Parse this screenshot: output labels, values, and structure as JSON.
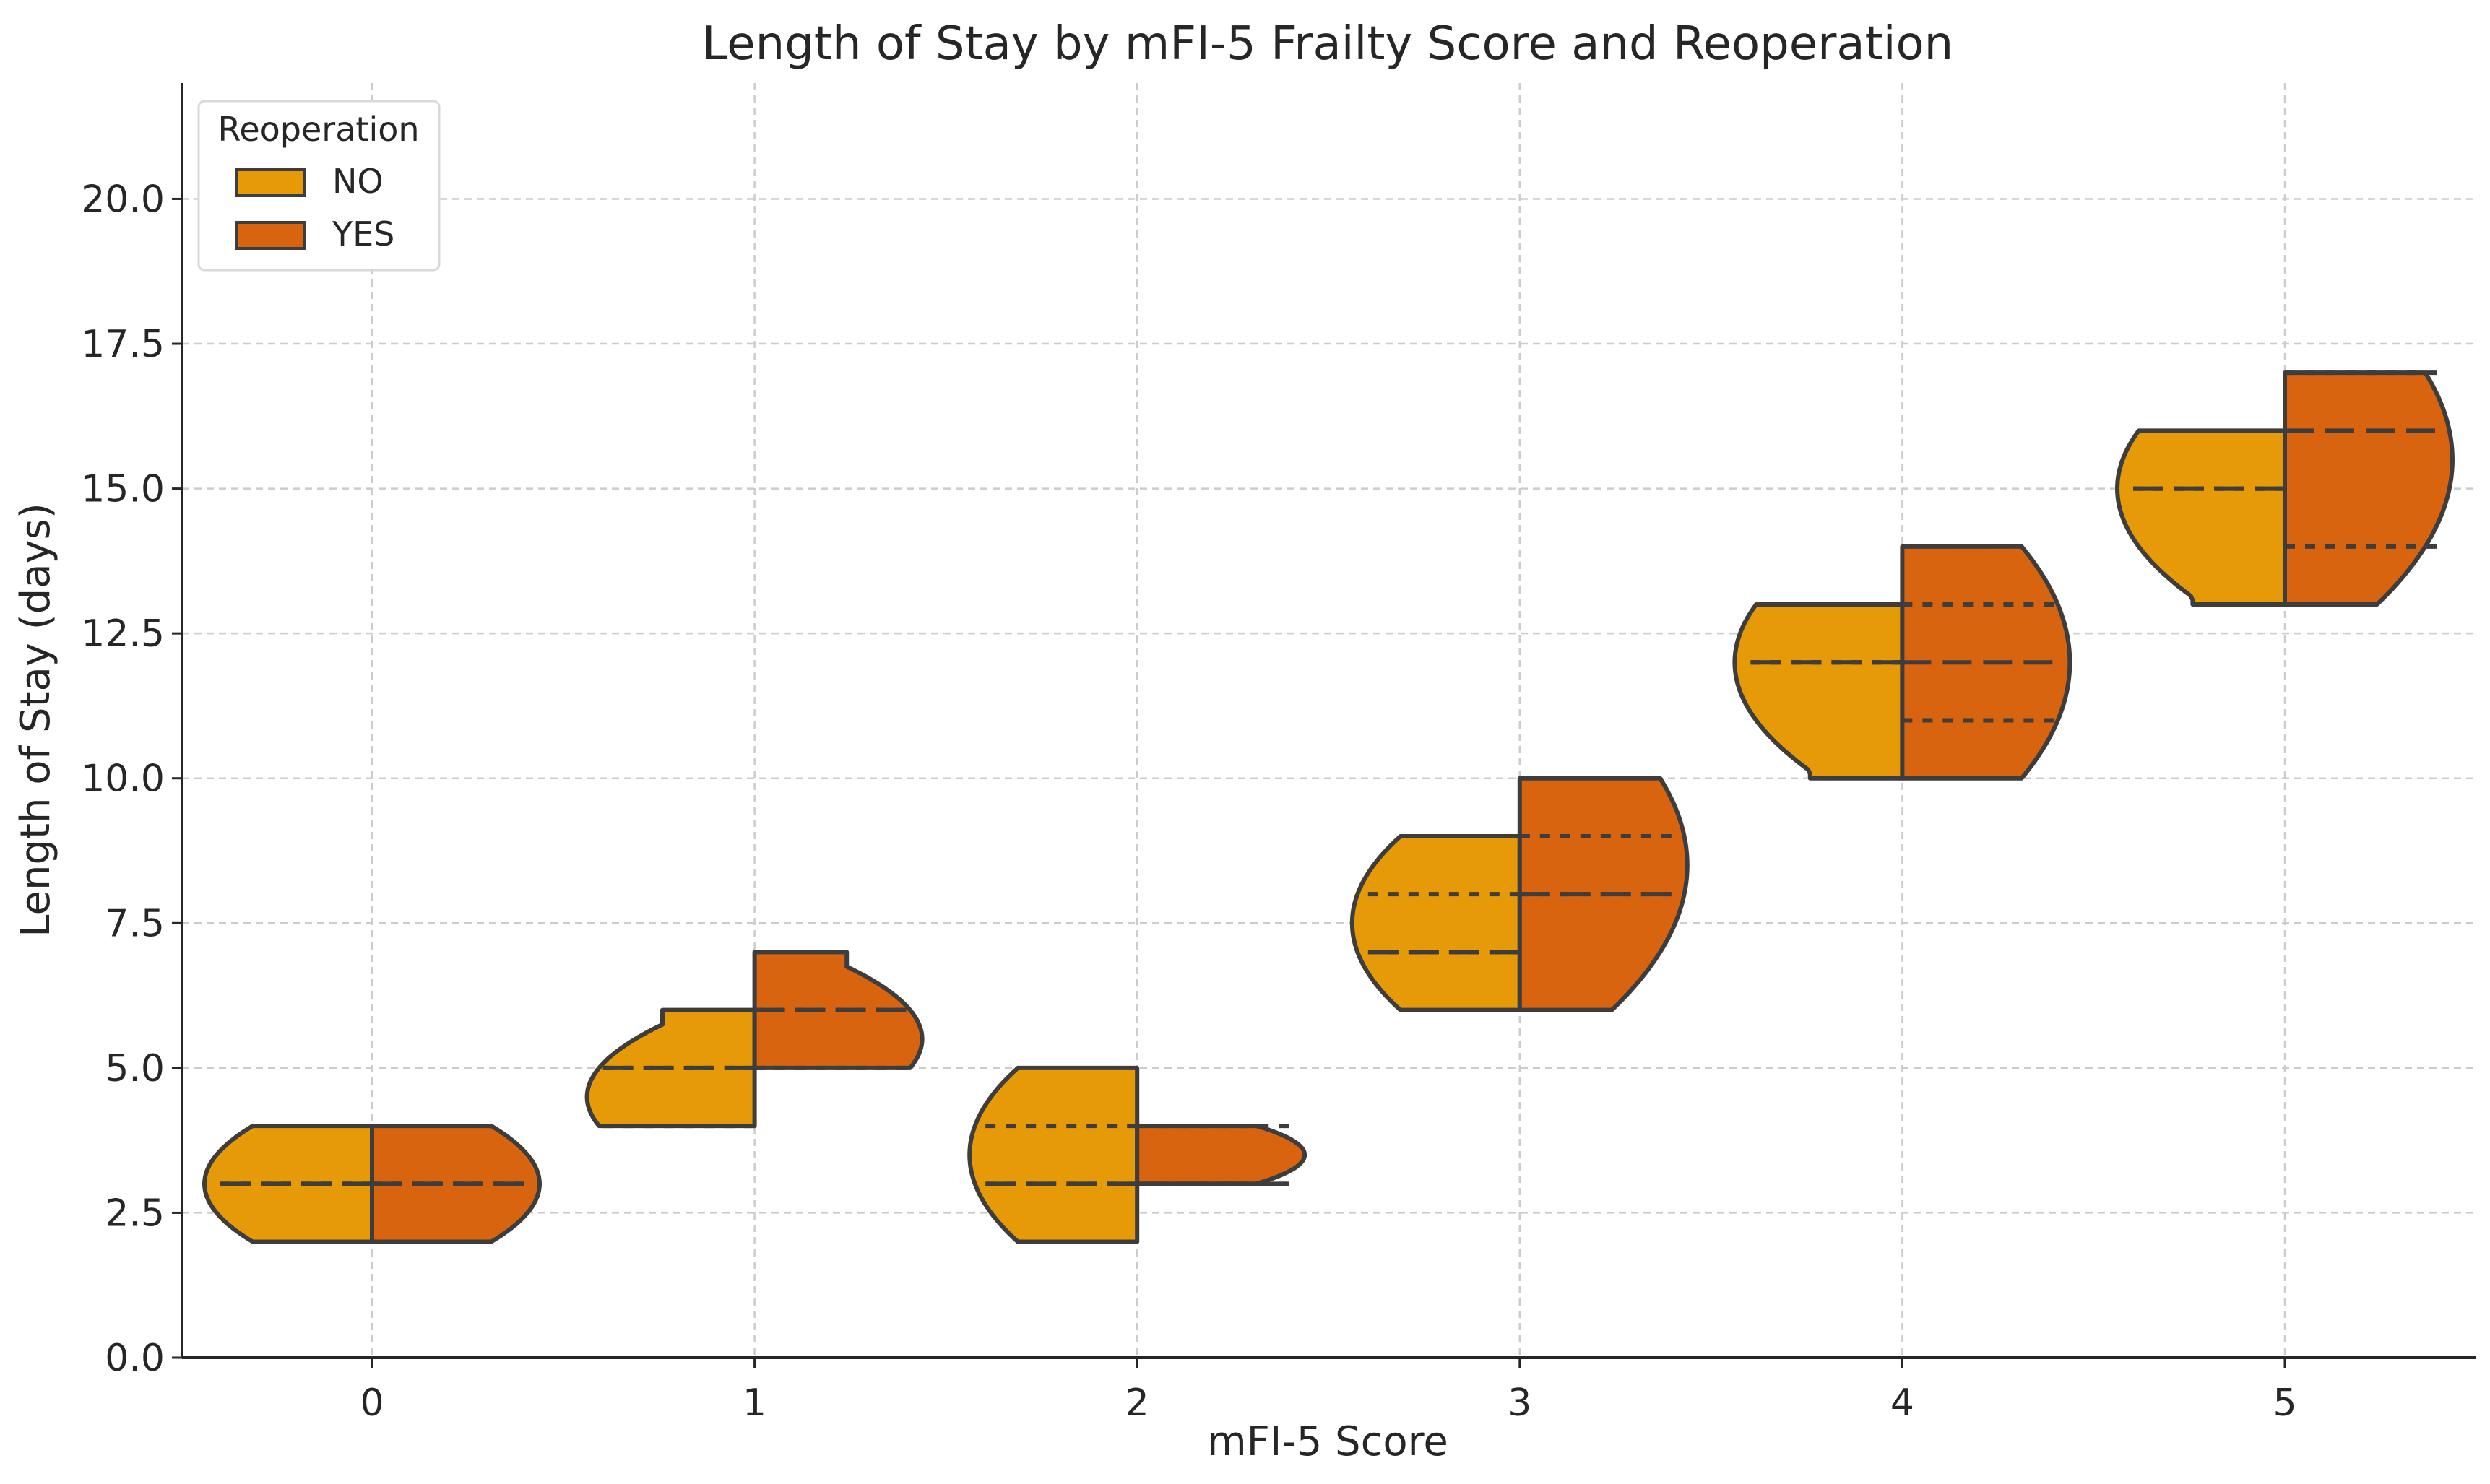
{
  "chart_data": {
    "type": "violin",
    "title": "Length of Stay by mFI-5 Frailty Score and Reoperation",
    "xlabel": "mFI-5 Score",
    "ylabel": "Length of Stay (days)",
    "categories": [
      "0",
      "1",
      "2",
      "3",
      "4",
      "5"
    ],
    "ylim": [
      0,
      22
    ],
    "yticks": [
      0.0,
      2.5,
      5.0,
      7.5,
      10.0,
      12.5,
      15.0,
      17.5,
      20.0
    ],
    "ytick_labels": [
      "0.0",
      "2.5",
      "5.0",
      "7.5",
      "10.0",
      "12.5",
      "15.0",
      "17.5",
      "20.0"
    ],
    "grid": true,
    "split": true,
    "legend": {
      "title": "Reoperation",
      "position": "top-left",
      "entries": [
        {
          "label": "NO",
          "color": "#E69A07"
        },
        {
          "label": "YES",
          "color": "#D9640F"
        }
      ]
    },
    "series": [
      {
        "name": "NO",
        "color": "#E69A07",
        "side": "left",
        "violins": [
          {
            "category": "0",
            "min": 2,
            "max": 4,
            "q1": 3,
            "median": 3,
            "q3": 3
          },
          {
            "category": "1",
            "min": 4,
            "max": 6,
            "q1": 4,
            "median": 5,
            "q3": 5
          },
          {
            "category": "2",
            "min": 2,
            "max": 5,
            "q1": 3,
            "median": 3,
            "q3": 4
          },
          {
            "category": "3",
            "min": 6,
            "max": 9,
            "q1": 7,
            "median": 7,
            "q3": 8
          },
          {
            "category": "4",
            "min": 10,
            "max": 13,
            "q1": 12,
            "median": 12,
            "q3": 12
          },
          {
            "category": "5",
            "min": 13,
            "max": 16,
            "q1": 15,
            "median": 15,
            "q3": 15
          }
        ]
      },
      {
        "name": "YES",
        "color": "#D9640F",
        "side": "right",
        "violins": [
          {
            "category": "0",
            "min": 2,
            "max": 4,
            "q1": 3,
            "median": 3,
            "q3": 3
          },
          {
            "category": "1",
            "min": 5,
            "max": 7,
            "q1": 5,
            "median": 6,
            "q3": 6
          },
          {
            "category": "2",
            "min": 3,
            "max": 4,
            "q1": 3,
            "median": 3,
            "q3": 4
          },
          {
            "category": "3",
            "min": 6,
            "max": 10,
            "q1": 8,
            "median": 8,
            "q3": 9
          },
          {
            "category": "4",
            "min": 10,
            "max": 14,
            "q1": 11,
            "median": 12,
            "q3": 13
          },
          {
            "category": "5",
            "min": 13,
            "max": 17,
            "q1": 14,
            "median": 16,
            "q3": 17
          }
        ]
      }
    ]
  }
}
